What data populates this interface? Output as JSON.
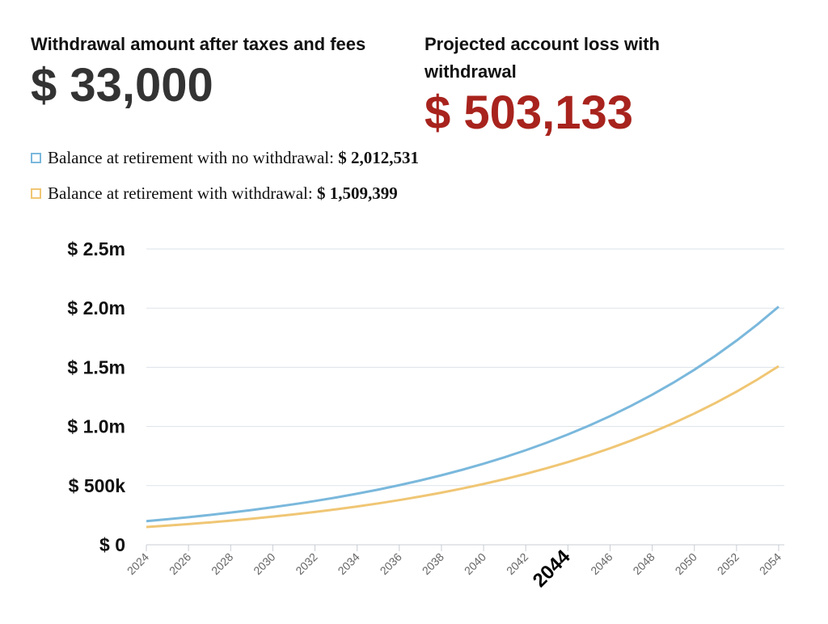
{
  "summary": {
    "withdrawal_heading": "Withdrawal amount after taxes and fees",
    "withdrawal_amount": "$ 33,000",
    "loss_heading": "Projected account loss with withdrawal",
    "loss_amount": "$ 503,133"
  },
  "chart_data": {
    "type": "line",
    "x": [
      2024,
      2025,
      2026,
      2027,
      2028,
      2029,
      2030,
      2031,
      2032,
      2033,
      2034,
      2035,
      2036,
      2037,
      2038,
      2039,
      2040,
      2041,
      2042,
      2043,
      2044,
      2045,
      2046,
      2047,
      2048,
      2049,
      2050,
      2051,
      2052,
      2053,
      2054
    ],
    "series": [
      {
        "name": "Balance at retirement with no withdrawal:",
        "final_label": "$ 2,012,531",
        "color": "#7ab8dc",
        "values": [
          200000,
          216000,
          233280,
          251942,
          272098,
          293866,
          317375,
          342765,
          370186,
          399801,
          431785,
          466328,
          503634,
          543925,
          587439,
          634434,
          685189,
          740004,
          799204,
          863140,
          932191,
          1006767,
          1087308,
          1174293,
          1268236,
          1369695,
          1479271,
          1597612,
          1725421,
          1863455,
          2012531
        ]
      },
      {
        "name": "Balance at retirement with withdrawal:",
        "final_label": "$ 1,509,399",
        "color": "#f0c674",
        "values": [
          150000,
          162000,
          174960,
          188957,
          204073,
          220399,
          238031,
          257074,
          277640,
          299851,
          323839,
          349746,
          377726,
          407944,
          440579,
          475825,
          513891,
          555003,
          599403,
          647355,
          699144,
          755075,
          815481,
          880720,
          951177,
          1027271,
          1109453,
          1198209,
          1294066,
          1397591,
          1509399
        ]
      }
    ],
    "xlim": [
      2024,
      2054
    ],
    "xticks": [
      2024,
      2026,
      2028,
      2030,
      2032,
      2034,
      2036,
      2038,
      2040,
      2042,
      2044,
      2046,
      2048,
      2050,
      2052,
      2054
    ],
    "highlighted_xtick": 2044,
    "ylim": [
      0,
      2500000
    ],
    "yticks": [
      {
        "value": 0,
        "label": "$ 0"
      },
      {
        "value": 500000,
        "label": "$ 500k"
      },
      {
        "value": 1000000,
        "label": "$ 1.0m"
      },
      {
        "value": 1500000,
        "label": "$ 1.5m"
      },
      {
        "value": 2000000,
        "label": "$ 2.0m"
      },
      {
        "value": 2500000,
        "label": "$ 2.5m"
      }
    ],
    "grid": true
  }
}
